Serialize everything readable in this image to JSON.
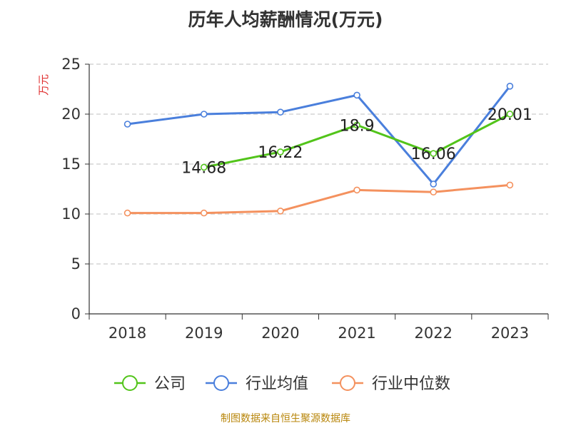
{
  "chart_data": {
    "type": "line",
    "title": "历年人均薪酬情况(万元)",
    "ylabel": "万元",
    "xlabel": "",
    "categories": [
      "2018",
      "2019",
      "2020",
      "2021",
      "2022",
      "2023"
    ],
    "ylim": [
      0,
      25
    ],
    "yticks": [
      "0",
      "5",
      "10",
      "15",
      "20",
      "25"
    ],
    "grid": true,
    "legend_position": "bottom",
    "series": [
      {
        "name": "公司",
        "color": "#52c41a",
        "values": [
          null,
          14.68,
          16.22,
          18.9,
          16.06,
          20.01
        ],
        "labels": [
          null,
          "14.68",
          "16.22",
          "18.9",
          "16.06",
          "20.01"
        ]
      },
      {
        "name": "行业均值",
        "color": "#4a7fdc",
        "values": [
          19.0,
          20.0,
          20.2,
          21.9,
          13.0,
          22.8
        ]
      },
      {
        "name": "行业中位数",
        "color": "#f4915e",
        "values": [
          10.1,
          10.1,
          10.3,
          12.4,
          12.2,
          12.9
        ]
      }
    ]
  },
  "source_note": "制图数据来自恒生聚源数据库"
}
